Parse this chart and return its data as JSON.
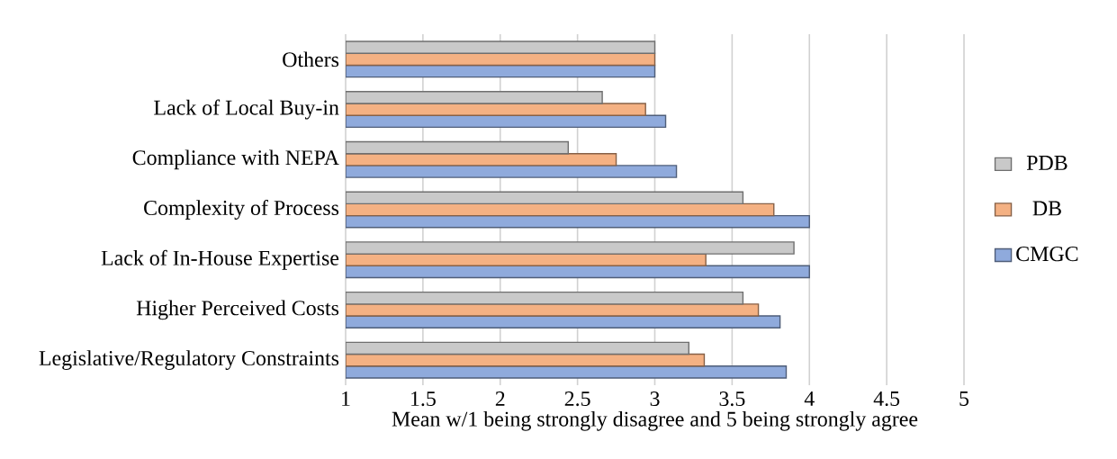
{
  "chart_data": {
    "type": "bar",
    "orientation": "horizontal",
    "xlabel": "Mean w/1 being strongly disagree and 5 being strongly agree",
    "categories": [
      "Others",
      "Lack of Local Buy-in",
      "Compliance with NEPA",
      "Complexity of Process",
      "Lack of In-House Expertise",
      "Higher Perceived Costs",
      "Legislative/Regulatory Constraints"
    ],
    "series": [
      {
        "name": "PDB",
        "color": "#c9c9c9",
        "values": [
          3,
          2.66,
          2.44,
          3.57,
          3.9,
          3.57,
          3.22
        ]
      },
      {
        "name": "DB",
        "color": "#f4b183",
        "values": [
          3,
          2.94,
          2.75,
          3.77,
          3.33,
          3.67,
          3.32
        ]
      },
      {
        "name": "CMGC",
        "color": "#8faadc",
        "values": [
          3,
          3.07,
          3.14,
          4,
          4,
          3.81,
          3.85
        ]
      }
    ],
    "xlim": [
      1,
      5
    ],
    "xticks": [
      1,
      1.5,
      2,
      2.5,
      3,
      3.5,
      4,
      4.5,
      5
    ],
    "grid": "x",
    "legend": "right"
  }
}
